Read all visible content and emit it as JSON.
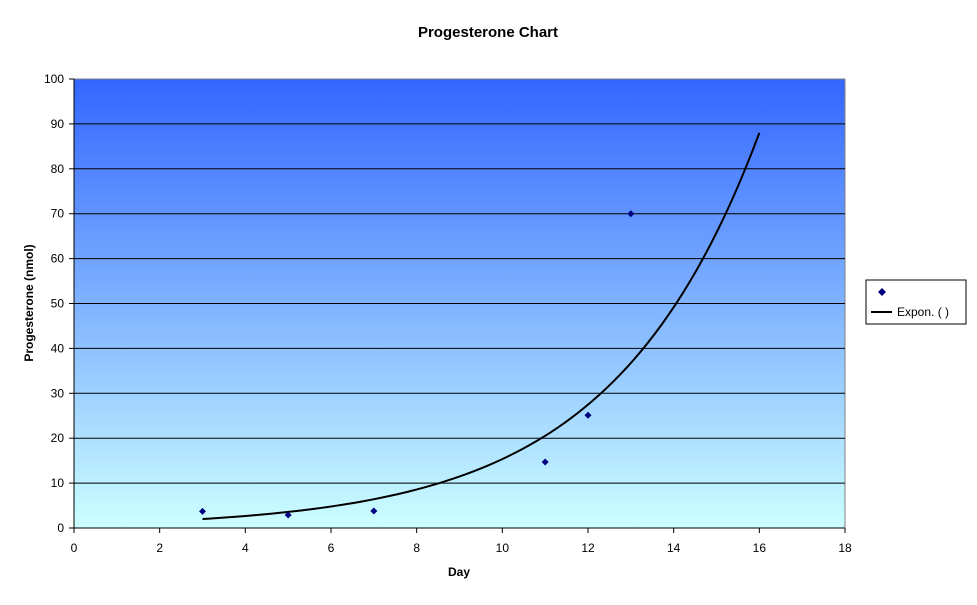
{
  "chart_data": {
    "type": "scatter",
    "title": "Progesterone Chart",
    "xlabel": "Day",
    "ylabel": "Progesterone (nmol)",
    "xlim": [
      0,
      18
    ],
    "ylim": [
      0,
      100
    ],
    "x_ticks": [
      0,
      2,
      4,
      6,
      8,
      10,
      12,
      14,
      16,
      18
    ],
    "y_ticks": [
      0,
      10,
      20,
      30,
      40,
      50,
      60,
      70,
      80,
      90,
      100
    ],
    "grid": "horizontal",
    "legend_position": "right",
    "series": [
      {
        "type": "scatter",
        "x": [
          3,
          5,
          7,
          11,
          12,
          13
        ],
        "y": [
          3.7,
          2.9,
          3.8,
          14.7,
          25.1,
          70
        ],
        "color": "#000080"
      }
    ],
    "trendline": {
      "type": "exponential",
      "name": "Expon. (   )",
      "x_range": [
        3,
        16
      ],
      "y_start": 2.0,
      "y_end": 88,
      "color": "#000000"
    },
    "background_gradient": {
      "top": "#3366ff",
      "bottom": "#ccffff"
    }
  }
}
